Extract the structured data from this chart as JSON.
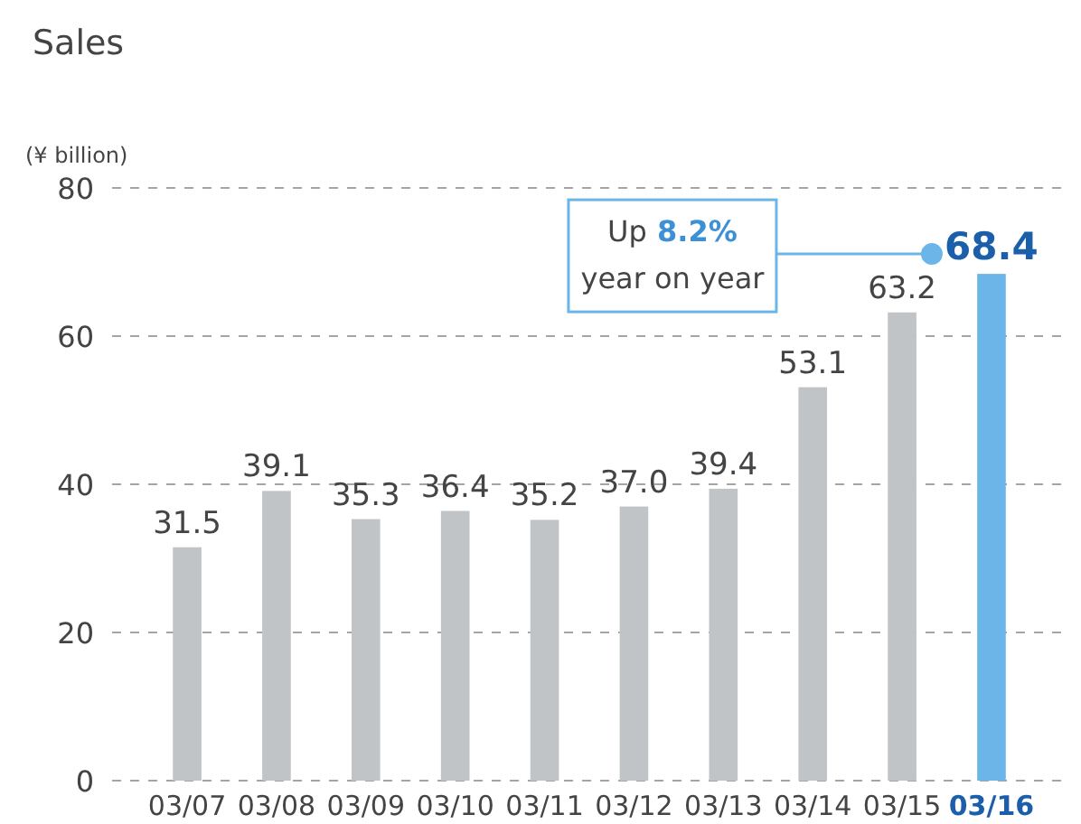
{
  "chart_data": {
    "type": "bar",
    "title": "Sales",
    "ylabel": "(¥ billion)",
    "categories": [
      "03/07",
      "03/08",
      "03/09",
      "03/10",
      "03/11",
      "03/12",
      "03/13",
      "03/14",
      "03/15",
      "03/16"
    ],
    "values": [
      31.5,
      39.1,
      35.3,
      36.4,
      35.2,
      37.0,
      39.4,
      53.1,
      63.2,
      68.4
    ],
    "value_labels": [
      "31.5",
      "39.1",
      "35.3",
      "36.4",
      "35.2",
      "37.0",
      "39.4",
      "53.1",
      "63.2",
      "68.4"
    ],
    "colors": [
      "#c1c4c6",
      "#c1c4c6",
      "#c1c4c6",
      "#c1c4c6",
      "#c1c4c6",
      "#c1c4c6",
      "#c1c4c6",
      "#c1c4c6",
      "#c1c4c6",
      "#6cb5e8"
    ],
    "ylim": [
      0,
      80
    ],
    "yticks": [
      0,
      20,
      40,
      60,
      80
    ],
    "grid": "y",
    "annotations": [
      "Up 8.2% year on year"
    ]
  }
}
